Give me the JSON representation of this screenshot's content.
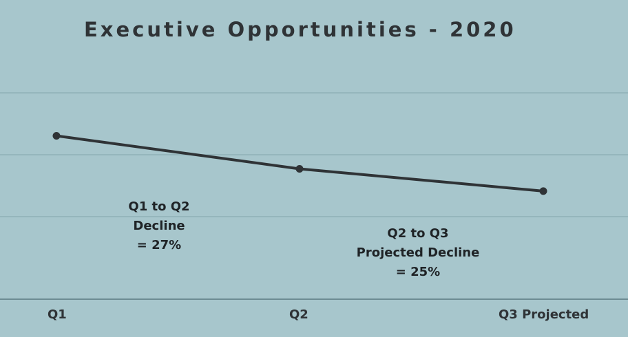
{
  "chart_data": {
    "type": "line",
    "title": "Executive Opportunities - 2020",
    "xlabel": "",
    "ylabel": "",
    "categories": [
      "Q1",
      "Q2",
      "Q3 Projected"
    ],
    "series": [
      {
        "values": [
          0.5917,
          0.4317,
          0.3238
        ]
      }
    ],
    "ylim": [
      -0.2,
      0.8
    ],
    "grid": true,
    "legend": "none",
    "annotations": [
      {
        "lines": [
          "Q1 to Q2",
          "Decline",
          "= 27%"
        ]
      },
      {
        "lines": [
          "Q2 to Q3",
          "Projected Decline",
          "= 25%"
        ]
      }
    ],
    "colors": {
      "background": "#a7c6cc",
      "line": "#2f3336",
      "grid": "#8fb0b7",
      "axis": "#6d8c93"
    }
  }
}
